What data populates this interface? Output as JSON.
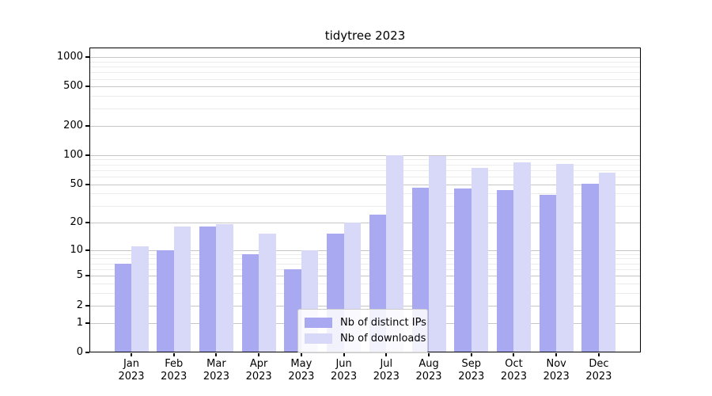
{
  "chart_data": {
    "type": "bar",
    "title": "tidytree 2023",
    "categories": [
      "Jan 2023",
      "Feb 2023",
      "Mar 2023",
      "Apr 2023",
      "May 2023",
      "Jun 2023",
      "Jul 2023",
      "Aug 2023",
      "Sep 2023",
      "Oct 2023",
      "Nov 2023",
      "Dec 2023"
    ],
    "series": [
      {
        "name": "Nb of distinct IPs",
        "color": "#a9a9f1",
        "values": [
          7,
          10,
          18,
          9,
          6,
          15,
          24,
          46,
          45,
          44,
          39,
          51
        ]
      },
      {
        "name": "Nb of downloads",
        "color": "#d8d8f8",
        "values": [
          11,
          18,
          19,
          15,
          10,
          20,
          100,
          97,
          74,
          85,
          81,
          66
        ]
      }
    ],
    "xlabel": "",
    "ylabel": "",
    "yscale": "log1p",
    "yticks": [
      0,
      1,
      2,
      5,
      10,
      20,
      50,
      100,
      200,
      500,
      1000
    ],
    "ylim": [
      0,
      1250
    ],
    "grid": "horizontal major and minor gridlines",
    "legend_position": "lower center inside plot"
  },
  "colors": {
    "major_grid": "#c6c6c6",
    "minor_grid": "#ececec",
    "axis": "#000000",
    "legend_bg": "#ffffff",
    "legend_border": "#cccccc"
  }
}
